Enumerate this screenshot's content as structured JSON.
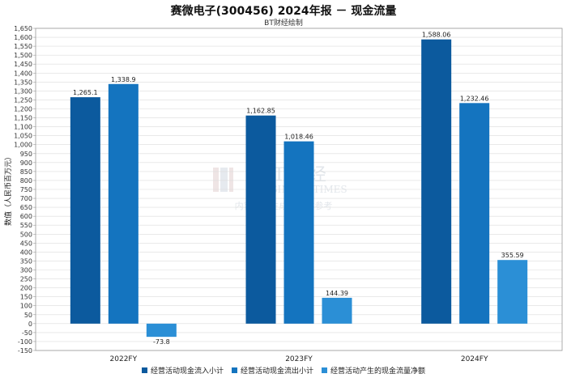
{
  "title": "赛微电子(300456) 2024年报 － 现金流量",
  "subtitle": "BT财经绘制",
  "watermark": {
    "brand": "BT 财经",
    "brand_en": "BUSINESS TIMES",
    "note": "内容由AI生成，仅供参考"
  },
  "chart_data": {
    "type": "bar",
    "categories": [
      "2022FY",
      "2023FY",
      "2024FY"
    ],
    "series": [
      {
        "name": "经营活动现金流入小计",
        "values": [
          1265.1,
          1162.85,
          1588.06
        ],
        "labels": [
          "1,265.1",
          "1,162.85",
          "1,588.06"
        ],
        "color": "#0c5a9e"
      },
      {
        "name": "经营活动现金流出小计",
        "values": [
          1338.9,
          1018.46,
          1232.46
        ],
        "labels": [
          "1,338.9",
          "1,018.46",
          "1,232.46"
        ],
        "color": "#1474bf"
      },
      {
        "name": "经营活动产生的现金流量净额",
        "values": [
          -73.8,
          144.39,
          355.59
        ],
        "labels": [
          "-73.8",
          "144.39",
          "355.59"
        ],
        "color": "#2b8fd6"
      }
    ],
    "ylabel": "数值（人民币百万元）",
    "xlabel": "",
    "ylim": [
      -150,
      1650
    ],
    "ytick_step": 50,
    "grid": true,
    "legend_position": "bottom"
  }
}
